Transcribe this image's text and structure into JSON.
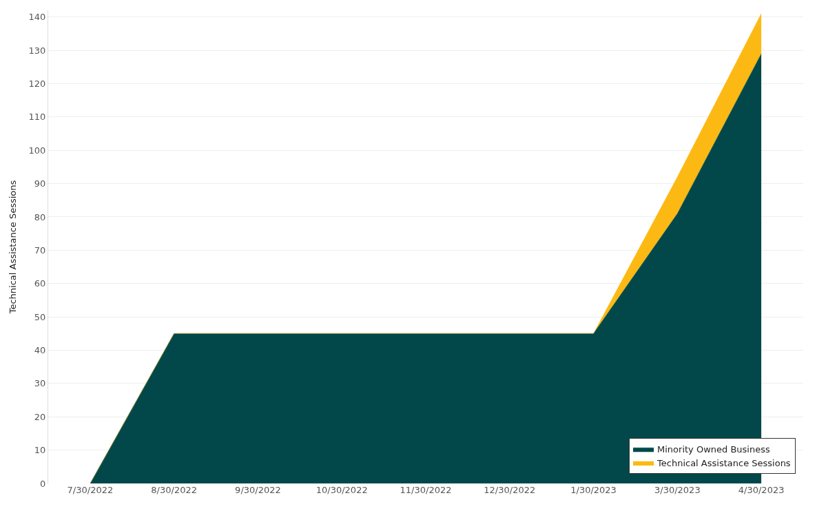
{
  "chart_data": {
    "type": "area",
    "stacked": true,
    "ylabel": "Technical Assistance Sessions",
    "categories": [
      "7/30/2022",
      "8/30/2022",
      "9/30/2022",
      "10/30/2022",
      "11/30/2022",
      "12/30/2022",
      "1/30/2023",
      "3/30/2023",
      "4/30/2023"
    ],
    "series": [
      {
        "name": "Minority Owned Business",
        "color": "#02484a",
        "values": [
          0,
          45,
          45,
          45,
          45,
          45,
          45,
          81,
          129
        ]
      },
      {
        "name": "Technical Assistance Sessions",
        "color": "#fdb913",
        "values": [
          0,
          0,
          0,
          0,
          0,
          0,
          0,
          11,
          12
        ]
      }
    ],
    "ylim": [
      0,
      142
    ],
    "yticks": [
      0,
      10,
      20,
      30,
      40,
      50,
      60,
      70,
      80,
      90,
      100,
      110,
      120,
      130,
      140
    ],
    "grid": "y",
    "legend": "bottom right"
  }
}
